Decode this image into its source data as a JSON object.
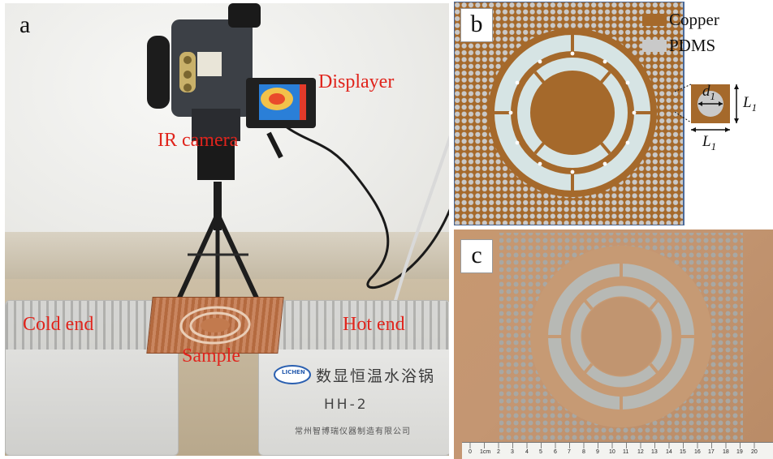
{
  "panel_a": {
    "letter": "a",
    "labels": {
      "displayer": "Displayer",
      "ir_camera": "IR camera",
      "cold_end": "Cold end",
      "hot_end": "Hot end",
      "sample": "Sample"
    },
    "device": {
      "logo": "LICHEN",
      "name": "数显恒温水浴锅",
      "model": "HH-2",
      "company": "常州智博瑞仪器制造有限公司"
    },
    "label_color": "#e0241c"
  },
  "panel_b": {
    "letter": "b",
    "legend": [
      {
        "name": "Copper",
        "color": "#a5692b"
      },
      {
        "name": "PDMS",
        "color": "#c9c9c9"
      }
    ],
    "unit_cell": {
      "diameter_label": "d",
      "diameter_sub": "1",
      "side_label": "L",
      "side_sub": "1"
    }
  },
  "panel_c": {
    "letter": "c",
    "ruler_unit": "1cm",
    "ruler_numbers": [
      "0",
      "1cm",
      "2",
      "3",
      "4",
      "5",
      "6",
      "7",
      "8",
      "9",
      "10",
      "11",
      "12",
      "13",
      "14",
      "15",
      "16",
      "17",
      "18",
      "19",
      "20"
    ]
  }
}
